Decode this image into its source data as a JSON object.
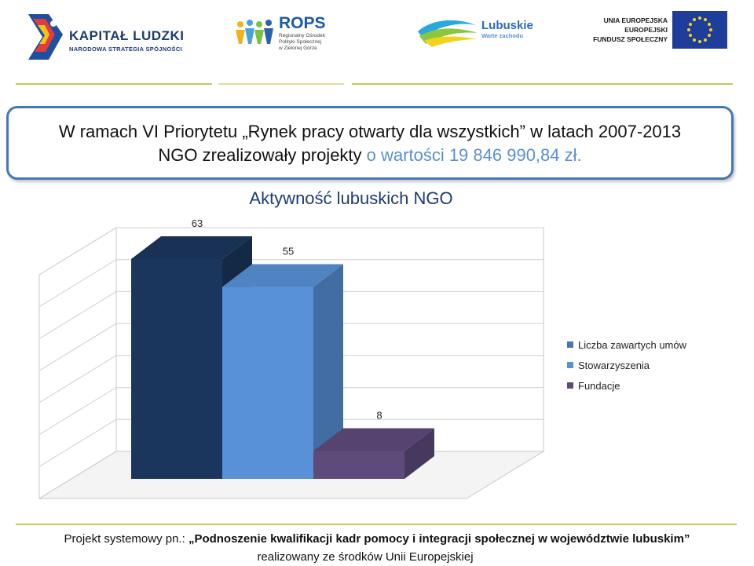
{
  "logos": {
    "kapital_ludzki": {
      "title": "KAPITAŁ LUDZKI",
      "subtitle": "NARODOWA STRATEGIA SPÓJNOŚCI"
    },
    "rops": {
      "title": "ROPS",
      "sub1": "Regionalny Ośrodek",
      "sub2": "Polityki Społecznej",
      "sub3": "w Zielonej Górze"
    },
    "lubuskie": {
      "title": "Lubuskie",
      "subtitle": "Warte zachodu"
    },
    "ue": {
      "line1": "UNIA EUROPEJSKA",
      "line2": "EUROPEJSKI",
      "line3": "FUNDUSZ SPOŁECZNY"
    }
  },
  "headline": {
    "line1": "W ramach VI Priorytetu „Rynek pracy otwarty dla wszystkich” w latach 2007-2013",
    "line2_plain": "NGO zrealizowały projekty ",
    "line2_highlight": "o wartości 19 846 990,84 zł."
  },
  "colors": {
    "accent_blue": "#4a74b8",
    "highlight_blue": "#5b8fd6",
    "green_rule": "#b5cf5a",
    "title_navy": "#1f3b73"
  },
  "chart_data": {
    "type": "bar",
    "title": "Aktywność lubuskich NGO",
    "three_d": true,
    "gridlines": true,
    "legend_position": "right",
    "ylim": [
      0,
      70
    ],
    "series": [
      {
        "name": "Liczba zawartych umów",
        "value": 63,
        "label": "63",
        "color": "#1b365d"
      },
      {
        "name": "Stowarzyszenia",
        "value": 55,
        "label": "55",
        "color": "#5891d8"
      },
      {
        "name": "Fundacje",
        "value": 8,
        "label": "8",
        "color": "#5f4a7c"
      }
    ]
  },
  "footer": {
    "prefix": "Projekt systemowy pn.: ",
    "project_name": "„Podnoszenie kwalifikacji kadr pomocy i integracji społecznej w województwie lubuskim”",
    "line2": "realizowany ze środków Unii Europejskiej"
  }
}
